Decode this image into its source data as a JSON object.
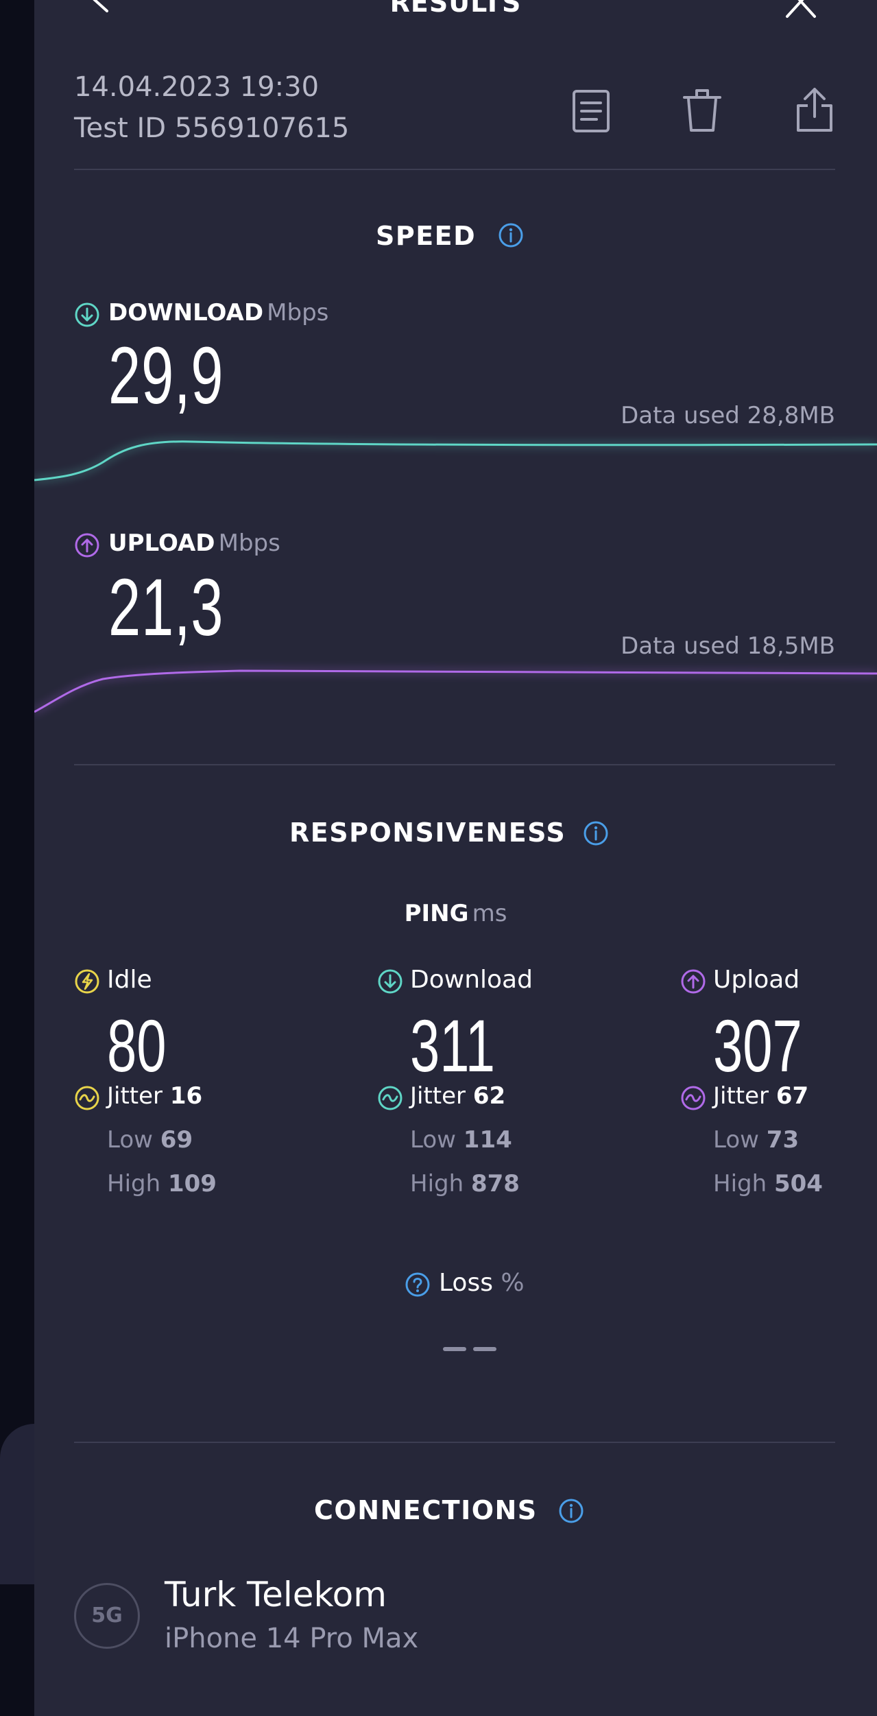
{
  "header": {
    "title": "RESULTS",
    "back_icon": "arrow-left-icon",
    "close_icon": "close-icon"
  },
  "meta": {
    "date": "14.04.2023 19:30",
    "test_id": "Test ID 5569107615",
    "actions": [
      "document-icon",
      "trash-icon",
      "share-icon"
    ]
  },
  "speed": {
    "title": "SPEED",
    "download": {
      "label": "DOWNLOAD",
      "unit": "Mbps",
      "value": "29,9",
      "data_used": "Data used 28,8MB",
      "color": "#5fd6c6"
    },
    "upload": {
      "label": "UPLOAD",
      "unit": "Mbps",
      "value": "21,3",
      "data_used": "Data used 18,5MB",
      "color": "#b06ae8"
    }
  },
  "responsiveness": {
    "title": "RESPONSIVENESS",
    "ping_label": "PING",
    "ping_unit": "ms",
    "columns": [
      {
        "label": "Idle",
        "value": "80",
        "jitter_label": "Jitter",
        "jitter": "16",
        "low_label": "Low",
        "low": "69",
        "high_label": "High",
        "high": "109",
        "color": "#e8d44a"
      },
      {
        "label": "Download",
        "value": "311",
        "jitter_label": "Jitter",
        "jitter": "62",
        "low_label": "Low",
        "low": "114",
        "high_label": "High",
        "high": "878",
        "color": "#5fd6c6"
      },
      {
        "label": "Upload",
        "value": "307",
        "jitter_label": "Jitter",
        "jitter": "67",
        "low_label": "Low",
        "low": "73",
        "high_label": "High",
        "high": "504",
        "color": "#b06ae8"
      }
    ],
    "loss_label": "Loss",
    "loss_unit": "%"
  },
  "connections": {
    "title": "CONNECTIONS",
    "badge": "5G",
    "provider": "Turk Telekom",
    "device": "iPhone 14 Pro Max"
  },
  "colors": {
    "info": "#4a9ee8",
    "background": "#262739"
  }
}
